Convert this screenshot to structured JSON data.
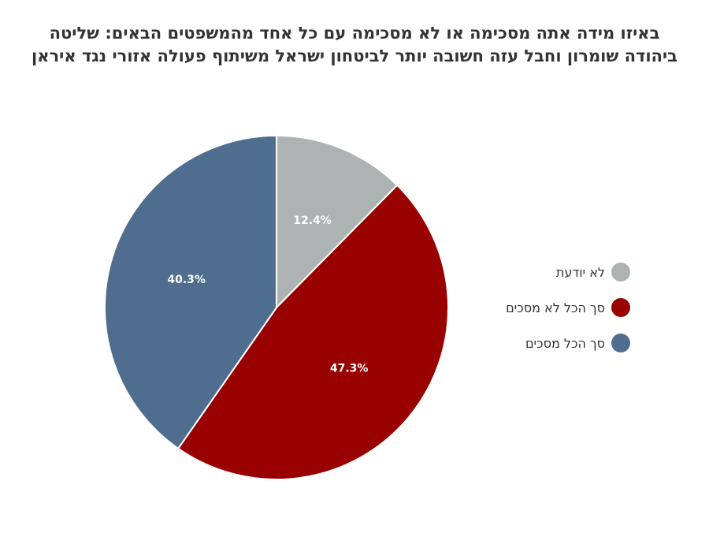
{
  "title_lines": [
    "באיזו מידה אתה מסכימה או לא מסכימה עם כל אחד מהמשפטים הבאים: שליטה",
    "ביהודה שומרון וחבל עזה חשובה יותר לביטחון ישראל משיתוף פעולה אזורי נגד איראן"
  ],
  "chart_data": {
    "type": "pie",
    "title": "באיזו מידה אתה מסכימה או לא מסכימה עם כל אחד מהמשפטים הבאים: שליטה ביהודה שומרון וחבל עזה חשובה יותר לביטחון ישראל משיתוף פעולה אזורי נגד איראן",
    "legend_position": "right",
    "start_angle": "top, clockwise",
    "slices": [
      {
        "name": "לא יודעת",
        "value": 12.4,
        "label": "12.4%",
        "color": "#adb2b3"
      },
      {
        "name": "סך הכל לא מסכים",
        "value": 47.3,
        "label": "47.3%",
        "color": "#990000"
      },
      {
        "name": "סך הכל מסכים",
        "value": 40.3,
        "label": "40.3%",
        "color": "#4f6d8f"
      }
    ]
  }
}
